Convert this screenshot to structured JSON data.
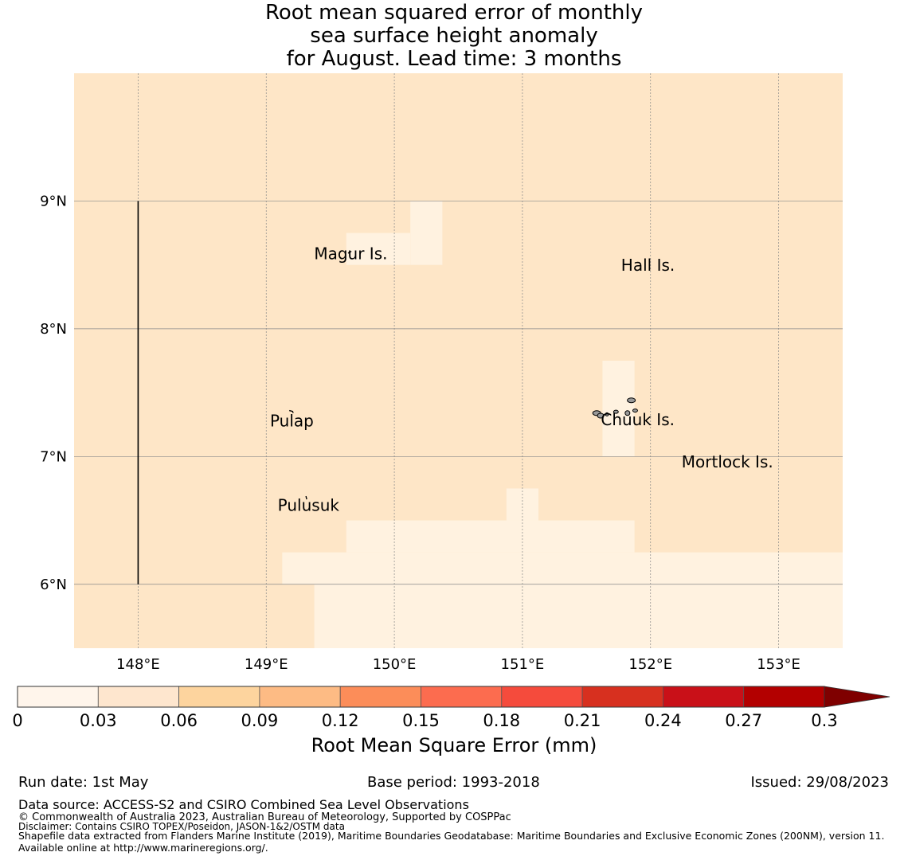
{
  "title": {
    "line1": "Root mean squared error of monthly",
    "line2": "sea surface height anomaly",
    "line3": "for August. Lead time: 3 months"
  },
  "colors": {
    "background_field": "#fee6c7",
    "low_field": "#fff2e0",
    "coastline": "#000000",
    "land": "#999999",
    "grid": "#888888"
  },
  "map": {
    "lon_range": [
      147.5,
      153.5
    ],
    "lat_range": [
      5.5,
      10.0
    ],
    "x_ticks": [
      {
        "value": 148,
        "label": "148°E"
      },
      {
        "value": 149,
        "label": "149°E"
      },
      {
        "value": 150,
        "label": "150°E"
      },
      {
        "value": 151,
        "label": "151°E"
      },
      {
        "value": 152,
        "label": "152°E"
      },
      {
        "value": 153,
        "label": "153°E"
      }
    ],
    "y_ticks": [
      {
        "value": 9,
        "label": "9°N"
      },
      {
        "value": 8,
        "label": "8°N"
      },
      {
        "value": 7,
        "label": "7°N"
      },
      {
        "value": 6,
        "label": "6°N"
      }
    ],
    "boundary_line": {
      "lon": 148.0,
      "lat_from": 6.0,
      "lat_to": 9.0
    },
    "islands": [
      {
        "name": "Magur Is.",
        "lon": 149.66,
        "lat": 8.58
      },
      {
        "name": "Hall Is.",
        "lon": 151.98,
        "lat": 8.49
      },
      {
        "name": "Pulap",
        "lon": 149.2,
        "lat": 7.27
      },
      {
        "name": "Chuuk Is.",
        "lon": 151.9,
        "lat": 7.28
      },
      {
        "name": "Mortlock Is.",
        "lon": 152.6,
        "lat": 6.95
      },
      {
        "name": "Pulusuk",
        "lon": 149.33,
        "lat": 6.61
      }
    ],
    "low_error_cells": [
      {
        "lon0": 150.125,
        "lon1": 150.375,
        "lat0": 8.5,
        "lat1": 9.0
      },
      {
        "lon0": 149.625,
        "lon1": 150.125,
        "lat0": 8.5,
        "lat1": 8.75
      },
      {
        "lon0": 151.625,
        "lon1": 151.875,
        "lat0": 7.0,
        "lat1": 7.75
      },
      {
        "lon0": 150.875,
        "lon1": 151.125,
        "lat0": 6.5,
        "lat1": 6.75
      },
      {
        "lon0": 149.625,
        "lon1": 151.875,
        "lat0": 6.25,
        "lat1": 6.5
      },
      {
        "lon0": 149.125,
        "lon1": 153.5,
        "lat0": 6.0,
        "lat1": 6.25
      },
      {
        "lon0": 149.375,
        "lon1": 153.5,
        "lat0": 5.5,
        "lat1": 6.0
      }
    ]
  },
  "colorbar": {
    "title": "Root Mean Square Error (mm)",
    "ticks": [
      "0",
      "0.03",
      "0.06",
      "0.09",
      "0.12",
      "0.15",
      "0.18",
      "0.21",
      "0.24",
      "0.27",
      "0.3"
    ],
    "bin_colors": [
      "#fff5eb",
      "#fee6ce",
      "#fdd49e",
      "#fdbb84",
      "#fc8d59",
      "#fc6c4f",
      "#f54b3c",
      "#d7301f",
      "#c91018",
      "#b30000"
    ],
    "extend_color": "#7f0000"
  },
  "footer": {
    "run_date": "Run date: 1st May",
    "base_period": "Base period: 1993-2018",
    "issued": "Issued: 29/08/2023",
    "data_source": "Data source: ACCESS-S2 and CSIRO Combined Sea Level Observations",
    "copyright": "© Commonwealth of Australia 2023, Australian Bureau of Meteorology, Supported by COSPPac",
    "disclaimer": "Disclaimer: Contains CSIRO TOPEX/Poseidon, JASON-1&2/OSTM data",
    "shapefile": "Shapefile data extracted from Flanders Marine Institute (2019), Maritime Boundaries Geodatabase: Maritime Boundaries and Exclusive Economic Zones (200NM), version 11. Available online at http://www.marineregions.org/."
  }
}
